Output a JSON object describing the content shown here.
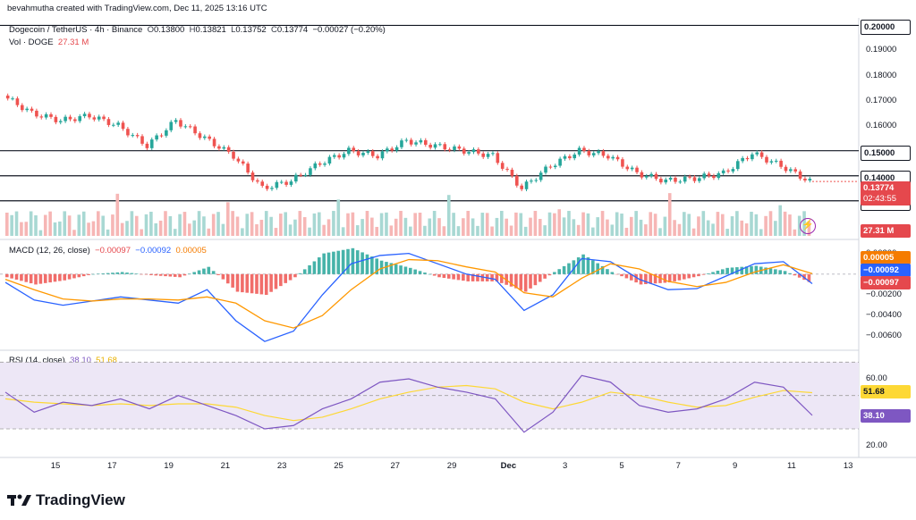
{
  "header": {
    "credit": "bevahmutha created with TradingView.com, Dec 11, 2025 13:16 UTC",
    "symbol": "Dogecoin / TetherUS · 4h · Binance",
    "o_label": "O",
    "o_value": "0.13800",
    "h_label": "H",
    "h_value": "0.13821",
    "l_label": "L",
    "l_value": "0.13752",
    "c_label": "C",
    "c_value": "0.13774",
    "change": "−0.00027 (−0.20%)",
    "vol_label": "Vol · DOGE",
    "vol_value": "27.31 M"
  },
  "macd_legend": {
    "label": "MACD (12, 26, close)",
    "hist": "−0.00097",
    "macd": "−0.00092",
    "signal": "0.00005"
  },
  "rsi_legend": {
    "label": "RSI (14, close)",
    "rsi": "38.10",
    "ma": "51.68"
  },
  "price_axis": {
    "ticks": [
      "0.20000",
      "0.19000",
      "0.18000",
      "0.17000",
      "0.16000",
      "0.15000",
      "0.14000",
      "0.13000"
    ],
    "current_price": "0.13774",
    "countdown": "02:43:55",
    "volume_tag": "27.31 M"
  },
  "macd_axis": {
    "ticks": [
      "0.00200",
      "−0.00200",
      "−0.00400",
      "−0.00600"
    ],
    "signal_tag": "0.00005",
    "macd_tag": "−0.00092",
    "hist_tag": "−0.00097"
  },
  "rsi_axis": {
    "ticks": [
      "60.00",
      "20.00"
    ],
    "ma_tag": "51.68",
    "rsi_tag": "38.10"
  },
  "time_axis": {
    "labels": [
      "15",
      "17",
      "19",
      "21",
      "23",
      "25",
      "27",
      "29",
      "Dec",
      "3",
      "5",
      "7",
      "9",
      "11",
      "13"
    ]
  },
  "footer": {
    "brand": "TradingView"
  },
  "colors": {
    "up": "#26a69a",
    "down": "#ef5350",
    "macd_line": "#2962ff",
    "signal_line": "#ff9800",
    "rsi_line": "#7e57c2",
    "rsi_ma": "#fdd835",
    "rsi_band": "#ede7f6"
  },
  "chart_data": [
    {
      "type": "candlestick",
      "title": "Dogecoin / TetherUS · 4h · Binance",
      "ylim": [
        0.126,
        0.203
      ],
      "horizontal_lines": [
        0.2,
        0.15,
        0.14,
        0.13
      ],
      "x": [
        "Nov 13",
        "Nov 14",
        "Nov 15",
        "Nov 16",
        "Nov 17",
        "Nov 18",
        "Nov 19",
        "Nov 20",
        "Nov 21",
        "Nov 22",
        "Nov 23",
        "Nov 24",
        "Nov 25",
        "Nov 26",
        "Nov 27",
        "Nov 28",
        "Nov 29",
        "Nov 30",
        "Dec 1",
        "Dec 2",
        "Dec 3",
        "Dec 4",
        "Dec 5",
        "Dec 6",
        "Dec 7",
        "Dec 8",
        "Dec 9",
        "Dec 10",
        "Dec 11"
      ],
      "close": [
        0.172,
        0.165,
        0.162,
        0.164,
        0.16,
        0.152,
        0.162,
        0.155,
        0.148,
        0.135,
        0.138,
        0.145,
        0.15,
        0.148,
        0.154,
        0.152,
        0.15,
        0.148,
        0.135,
        0.144,
        0.15,
        0.148,
        0.141,
        0.138,
        0.139,
        0.141,
        0.149,
        0.144,
        0.1377
      ],
      "volume_last": "27.31 M"
    },
    {
      "type": "line",
      "title": "MACD (12, 26, close)",
      "ylim": [
        -0.007,
        0.003
      ],
      "series": [
        {
          "name": "MACD",
          "values": [
            -0.0008,
            -0.0025,
            -0.003,
            -0.0026,
            -0.0022,
            -0.0025,
            -0.0028,
            -0.0015,
            -0.0045,
            -0.0065,
            -0.0055,
            -0.002,
            0.001,
            0.0018,
            0.002,
            0.001,
            0.0,
            -0.0005,
            -0.0035,
            -0.002,
            0.0015,
            0.0012,
            -0.0005,
            -0.0015,
            -0.0014,
            -0.0002,
            0.001,
            0.0012,
            -0.00092
          ]
        },
        {
          "name": "Signal",
          "values": [
            -0.0005,
            -0.0015,
            -0.0024,
            -0.0026,
            -0.0024,
            -0.0024,
            -0.0025,
            -0.0022,
            -0.0028,
            -0.0045,
            -0.0052,
            -0.004,
            -0.0015,
            0.0005,
            0.0014,
            0.0013,
            0.0007,
            0.0002,
            -0.0018,
            -0.0022,
            -0.0004,
            0.001,
            0.0005,
            -0.0007,
            -0.0012,
            -0.0008,
            0.0002,
            0.0009,
            5e-05
          ]
        },
        {
          "name": "Histogram",
          "values": [
            -0.0003,
            -0.001,
            -0.0006,
            0.0,
            0.0002,
            -0.0001,
            -0.0003,
            0.0007,
            -0.0017,
            -0.002,
            -0.0003,
            0.002,
            0.0025,
            0.0013,
            0.0006,
            -0.0003,
            -0.0007,
            -0.0007,
            -0.0017,
            0.0002,
            0.0019,
            0.0002,
            -0.001,
            -0.0008,
            -0.0002,
            0.0006,
            0.0008,
            0.0003,
            -0.00097
          ]
        }
      ]
    },
    {
      "type": "line",
      "title": "RSI (14, close)",
      "ylim": [
        15,
        75
      ],
      "bands": [
        30,
        50,
        70
      ],
      "series": [
        {
          "name": "RSI",
          "values": [
            52,
            40,
            46,
            44,
            48,
            42,
            50,
            44,
            38,
            30,
            32,
            42,
            48,
            58,
            60,
            55,
            52,
            48,
            28,
            40,
            62,
            58,
            44,
            40,
            42,
            48,
            58,
            55,
            38.1
          ]
        },
        {
          "name": "MA",
          "values": [
            48,
            46,
            45,
            44,
            45,
            44,
            45,
            45,
            43,
            38,
            35,
            37,
            42,
            48,
            52,
            55,
            56,
            54,
            46,
            42,
            46,
            52,
            50,
            46,
            43,
            44,
            49,
            53,
            51.68
          ]
        }
      ]
    }
  ]
}
